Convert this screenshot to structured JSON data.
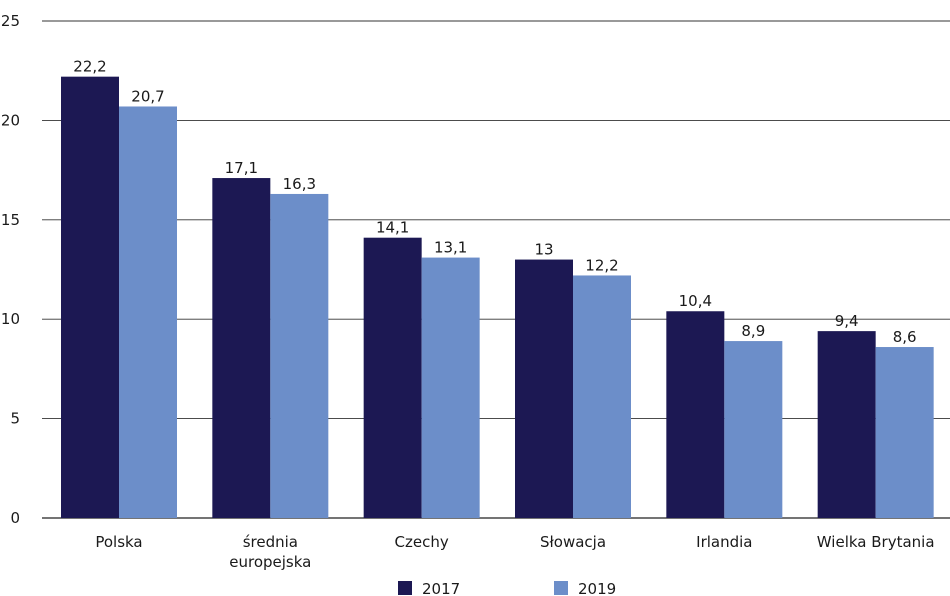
{
  "chart_data": {
    "type": "bar",
    "title": "",
    "xlabel": "",
    "ylabel": "",
    "ylim": [
      0,
      25
    ],
    "yticks": [
      "0",
      "5",
      "10",
      "15",
      "20",
      "25"
    ],
    "grid": true,
    "legend_position": "bottom",
    "categories": [
      [
        "Polska"
      ],
      [
        "średnia",
        "europejska"
      ],
      [
        "Czechy"
      ],
      [
        "Słowacja"
      ],
      [
        "Irlandia"
      ],
      [
        "Wielka Brytania"
      ]
    ],
    "series": [
      {
        "name": "2017",
        "color": "#1c1853",
        "values": [
          22.2,
          17.1,
          14.1,
          13,
          10.4,
          9.4
        ],
        "labels": [
          "22,2",
          "17,1",
          "14,1",
          "13",
          "10,4",
          "9,4"
        ]
      },
      {
        "name": "2019",
        "color": "#6c8ec9",
        "values": [
          20.7,
          16.3,
          13.1,
          12.2,
          8.9,
          8.6
        ],
        "labels": [
          "20,7",
          "16,3",
          "13,1",
          "12,2",
          "8,9",
          "8,6"
        ]
      }
    ]
  }
}
